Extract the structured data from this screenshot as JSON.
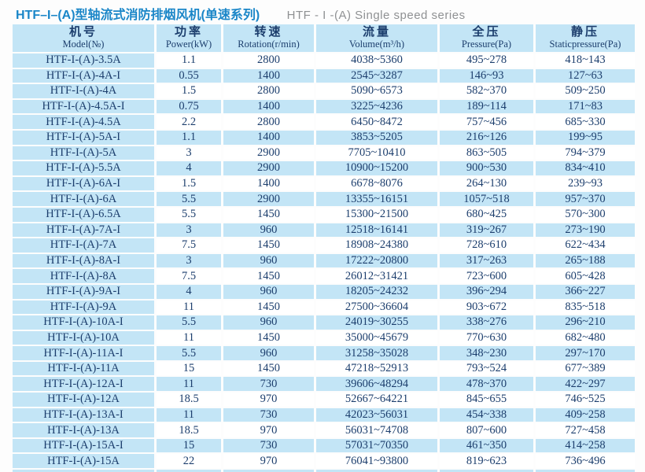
{
  "page": {
    "title_cn": "HTF–I–(A)型轴流式消防排烟风机(单速系列)",
    "title_en": "HTF - I -(A) Single speed series"
  },
  "colors": {
    "title_blue": "#1a86c8",
    "title_gray": "#8f9193",
    "cell_blue": "#c3e5f6",
    "text_navy": "#1c3e6d",
    "row_white": "#ffffff"
  },
  "table": {
    "columns": [
      {
        "cn": "机号",
        "en": "Model(№)"
      },
      {
        "cn": "功率",
        "en": "Power(kW)"
      },
      {
        "cn": "转速",
        "en": "Rotation(r/min)"
      },
      {
        "cn": "流量",
        "en": "Volume(m³/h)"
      },
      {
        "cn": "全压",
        "en": "Pressure(Pa)"
      },
      {
        "cn": "静压",
        "en": "Staticpressure(Pa)"
      }
    ],
    "rows": [
      [
        "HTF-I-(A)-3.5A",
        "1.1",
        "2800",
        "4038~5360",
        "495~278",
        "418~143"
      ],
      [
        "HTF-I-(A)-4A-I",
        "0.55",
        "1400",
        "2545~3287",
        "146~93",
        "127~63"
      ],
      [
        "HTF-I-(A)-4A",
        "1.5",
        "2800",
        "5090~6573",
        "582~370",
        "509~250"
      ],
      [
        "HTF-I-(A)-4.5A-I",
        "0.75",
        "1400",
        "3225~4236",
        "189~114",
        "171~83"
      ],
      [
        "HTF-I-(A)-4.5A",
        "2.2",
        "2800",
        "6450~8472",
        "757~456",
        "685~330"
      ],
      [
        "HTF-I-(A)-5A-I",
        "1.1",
        "1400",
        "3853~5205",
        "216~126",
        "199~95"
      ],
      [
        "HTF-I-(A)-5A",
        "3",
        "2900",
        "7705~10410",
        "863~505",
        "794~379"
      ],
      [
        "HTF-I-(A)-5.5A",
        "4",
        "2900",
        "10900~15200",
        "900~530",
        "834~410"
      ],
      [
        "HTF-I-(A)-6A-I",
        "1.5",
        "1400",
        "6678~8076",
        "264~130",
        "239~93"
      ],
      [
        "HTF-I-(A)-6A",
        "5.5",
        "2900",
        "13355~16151",
        "1057~518",
        "957~370"
      ],
      [
        "HTF-I-(A)-6.5A",
        "5.5",
        "1450",
        "15300~21500",
        "680~425",
        "570~300"
      ],
      [
        "HTF-I-(A)-7A-I",
        "3",
        "960",
        "12518~16141",
        "319~267",
        "273~190"
      ],
      [
        "HTF-I-(A)-7A",
        "7.5",
        "1450",
        "18908~24380",
        "728~610",
        "622~434"
      ],
      [
        "HTF-I-(A)-8A-I",
        "3",
        "960",
        "17222~20800",
        "317~263",
        "265~188"
      ],
      [
        "HTF-I-(A)-8A",
        "7.5",
        "1450",
        "26012~31421",
        "723~600",
        "605~428"
      ],
      [
        "HTF-I-(A)-9A-I",
        "4",
        "960",
        "18205~24232",
        "396~294",
        "366~227"
      ],
      [
        "HTF-I-(A)-9A",
        "11",
        "1450",
        "27500~36604",
        "903~672",
        "835~518"
      ],
      [
        "HTF-I-(A)-10A-I",
        "5.5",
        "960",
        "24019~30255",
        "338~276",
        "296~210"
      ],
      [
        "HTF-I-(A)-10A",
        "11",
        "1450",
        "35000~45679",
        "770~630",
        "682~480"
      ],
      [
        "HTF-I-(A)-11A-I",
        "5.5",
        "960",
        "31258~35028",
        "348~230",
        "297~170"
      ],
      [
        "HTF-I-(A)-11A",
        "15",
        "1450",
        "47218~52913",
        "793~524",
        "677~389"
      ],
      [
        "HTF-I-(A)-12A-I",
        "11",
        "730",
        "39606~48294",
        "478~370",
        "422~297"
      ],
      [
        "HTF-I-(A)-12A",
        "18.5",
        "970",
        "52667~64221",
        "845~655",
        "746~525"
      ],
      [
        "HTF-I-(A)-13A-I",
        "11",
        "730",
        "42023~56031",
        "454~338",
        "409~258"
      ],
      [
        "HTF-I-(A)-13A",
        "18.5",
        "970",
        "56031~74708",
        "807~600",
        "727~458"
      ],
      [
        "HTF-I-(A)-15A-I",
        "15",
        "730",
        "57031~70350",
        "461~350",
        "414~258"
      ],
      [
        "HTF-I-(A)-15A",
        "22",
        "970",
        "76041~93800",
        "819~623",
        "736~496"
      ]
    ]
  }
}
